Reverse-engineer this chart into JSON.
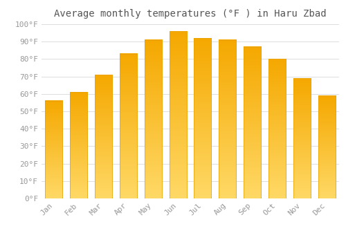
{
  "title": "Average monthly temperatures (°F ) in Haru Zbad",
  "months": [
    "Jan",
    "Feb",
    "Mar",
    "Apr",
    "May",
    "Jun",
    "Jul",
    "Aug",
    "Sep",
    "Oct",
    "Nov",
    "Dec"
  ],
  "values": [
    56,
    61,
    71,
    83,
    91,
    96,
    92,
    91,
    87,
    80,
    69,
    59
  ],
  "bar_color_top": "#F5A800",
  "bar_color_bottom": "#FFD966",
  "background_color": "#FFFFFF",
  "grid_color": "#DDDDDD",
  "ylim": [
    0,
    100
  ],
  "ytick_step": 10,
  "ylabel_suffix": "°F",
  "title_fontsize": 10,
  "tick_fontsize": 8,
  "tick_color": "#999999",
  "title_color": "#555555"
}
